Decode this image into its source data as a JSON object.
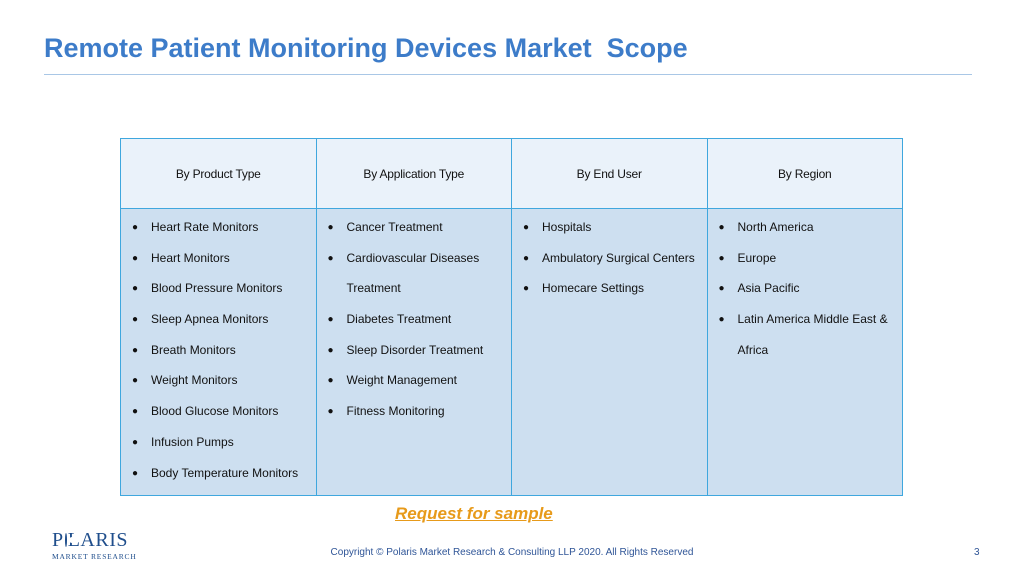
{
  "title": "Remote Patient Monitoring Devices Market  Scope",
  "table": {
    "headers": [
      "By Product Type",
      "By Application Type",
      "By End User",
      "By Region"
    ],
    "columns": [
      [
        "Heart Rate Monitors",
        "Heart Monitors",
        "Blood Pressure Monitors",
        "Sleep Apnea Monitors",
        "Breath Monitors",
        "Weight Monitors",
        "Blood Glucose Monitors",
        "Infusion Pumps",
        "Body Temperature Monitors"
      ],
      [
        "Cancer Treatment",
        "Cardiovascular Diseases",
        "Treatment",
        "Diabetes Treatment",
        "Sleep Disorder Treatment",
        "Weight Management",
        "Fitness Monitoring"
      ],
      [
        "Hospitals",
        "Ambulatory Surgical Centers",
        "Homecare Settings"
      ],
      [
        "North America",
        "Europe",
        "Asia Pacific",
        "Latin America Middle East &",
        "Africa"
      ]
    ],
    "continuation_lines": [
      [],
      [
        2
      ],
      [],
      [
        4
      ]
    ],
    "bullet_glyph": "●"
  },
  "request_link": "Request for sample",
  "logo": {
    "main_before": "P",
    "main_after": "LARIS",
    "sub": "MARKET RESEARCH"
  },
  "copyright": "Copyright © Polaris Market Research & Consulting LLP 2020. All Rights Reserved",
  "page_number": "3",
  "colors": {
    "title": "#3d7cc9",
    "header_bg": "#eaf2fa",
    "body_bg": "#cddff0",
    "border": "#3fa7de",
    "link": "#e79a1a",
    "logo": "#1f4e8c"
  }
}
